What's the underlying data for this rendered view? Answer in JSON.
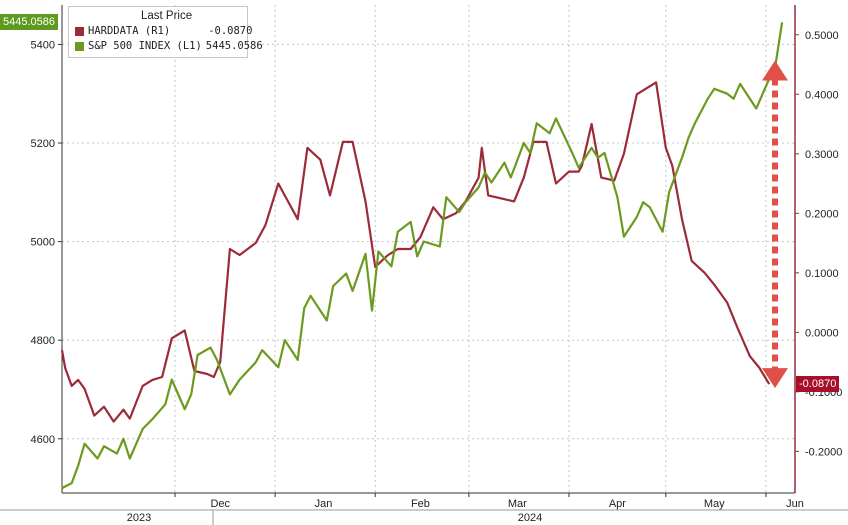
{
  "chart_data": {
    "type": "line",
    "legend": {
      "title": "Last Price",
      "entries": [
        {
          "name": "HARDDATA (R1)",
          "value": "-0.0870",
          "color": "#9c2b3a"
        },
        {
          "name": "S&P 500 INDEX (L1)",
          "value": "5445.0586",
          "color": "#6b9a1f"
        }
      ]
    },
    "left_axis": {
      "ticks": [
        "5400",
        "5200",
        "5000",
        "4800",
        "4600"
      ],
      "ylim": [
        4490,
        5480
      ]
    },
    "right_axis": {
      "ticks": [
        "0.5000",
        "0.4000",
        "0.3000",
        "0.2000",
        "0.1000",
        "0.0000",
        "-0.1000",
        "-0.2000"
      ],
      "ylim": [
        -0.27,
        0.55
      ]
    },
    "x_labels": [
      "Dec",
      "Jan",
      "Feb",
      "Mar",
      "Apr",
      "May",
      "Jun"
    ],
    "years": [
      "2023",
      "2024"
    ],
    "last_value_badges": {
      "left": "5445.0586",
      "right": "-0.0870"
    },
    "grid": true,
    "series": [
      {
        "name": "S&P 500 INDEX",
        "color": "#6b9a1f",
        "axis": "left",
        "x": [
          "2023-10-27",
          "2023-10-30",
          "2023-11-01",
          "2023-11-03",
          "2023-11-07",
          "2023-11-09",
          "2023-11-13",
          "2023-11-15",
          "2023-11-17",
          "2023-11-21",
          "2023-11-24",
          "2023-11-28",
          "2023-11-30",
          "2023-12-04",
          "2023-12-06",
          "2023-12-08",
          "2023-12-12",
          "2023-12-14",
          "2023-12-18",
          "2023-12-21",
          "2023-12-26",
          "2023-12-28",
          "2024-01-02",
          "2024-01-04",
          "2024-01-08",
          "2024-01-10",
          "2024-01-12",
          "2024-01-17",
          "2024-01-19",
          "2024-01-23",
          "2024-01-25",
          "2024-01-29",
          "2024-01-31",
          "2024-02-02",
          "2024-02-06",
          "2024-02-08",
          "2024-02-12",
          "2024-02-14",
          "2024-02-16",
          "2024-02-21",
          "2024-02-23",
          "2024-02-27",
          "2024-02-29",
          "2024-03-04",
          "2024-03-06",
          "2024-03-08",
          "2024-03-12",
          "2024-03-14",
          "2024-03-18",
          "2024-03-20",
          "2024-03-22",
          "2024-03-26",
          "2024-03-28",
          "2024-04-02",
          "2024-04-04",
          "2024-04-08",
          "2024-04-10",
          "2024-04-12",
          "2024-04-16",
          "2024-04-18",
          "2024-04-22",
          "2024-04-24",
          "2024-04-26",
          "2024-04-30",
          "2024-05-02",
          "2024-05-06",
          "2024-05-08",
          "2024-05-10",
          "2024-05-14",
          "2024-05-16",
          "2024-05-20",
          "2024-05-22",
          "2024-05-24",
          "2024-05-29",
          "2024-05-31",
          "2024-06-04",
          "2024-06-06"
        ],
        "values": [
          4500,
          4510,
          4545,
          4590,
          4560,
          4585,
          4570,
          4600,
          4560,
          4620,
          4640,
          4670,
          4720,
          4660,
          4690,
          4770,
          4785,
          4760,
          4690,
          4720,
          4755,
          4780,
          4745,
          4800,
          4760,
          4865,
          4890,
          4840,
          4910,
          4935,
          4900,
          4975,
          4860,
          4980,
          4950,
          5020,
          5040,
          4970,
          5000,
          4990,
          5090,
          5060,
          5080,
          5110,
          5140,
          5120,
          5160,
          5130,
          5200,
          5180,
          5240,
          5220,
          5250,
          5180,
          5150,
          5190,
          5170,
          5180,
          5090,
          5010,
          5050,
          5080,
          5070,
          5020,
          5100,
          5170,
          5210,
          5240,
          5290,
          5310,
          5300,
          5290,
          5320,
          5270,
          5300,
          5360,
          5445
        ]
      },
      {
        "name": "HARDDATA",
        "color": "#9c2b3a",
        "axis": "right",
        "x": [
          "2023-10-27",
          "2023-10-28",
          "2023-10-30",
          "2023-11-01",
          "2023-11-03",
          "2023-11-06",
          "2023-11-09",
          "2023-11-12",
          "2023-11-15",
          "2023-11-17",
          "2023-11-21",
          "2023-11-24",
          "2023-11-27",
          "2023-11-30",
          "2023-12-04",
          "2023-12-07",
          "2023-12-11",
          "2023-12-13",
          "2023-12-15",
          "2023-12-18",
          "2023-12-21",
          "2023-12-26",
          "2023-12-29",
          "2024-01-02",
          "2024-01-05",
          "2024-01-08",
          "2024-01-11",
          "2024-01-15",
          "2024-01-18",
          "2024-01-22",
          "2024-01-25",
          "2024-01-29",
          "2024-02-01",
          "2024-02-05",
          "2024-02-08",
          "2024-02-12",
          "2024-02-15",
          "2024-02-19",
          "2024-02-22",
          "2024-02-26",
          "2024-02-29",
          "2024-03-04",
          "2024-03-05",
          "2024-03-07",
          "2024-03-11",
          "2024-03-15",
          "2024-03-18",
          "2024-03-21",
          "2024-03-25",
          "2024-03-28",
          "2024-04-01",
          "2024-04-04",
          "2024-04-05",
          "2024-04-08",
          "2024-04-11",
          "2024-04-15",
          "2024-04-18",
          "2024-04-22",
          "2024-04-25",
          "2024-04-28",
          "2024-05-01",
          "2024-05-03",
          "2024-05-06",
          "2024-05-09",
          "2024-05-13",
          "2024-05-16",
          "2024-05-20",
          "2024-05-23",
          "2024-05-27",
          "2024-05-30",
          "2024-06-02"
        ],
        "values": [
          -0.03,
          -0.06,
          -0.09,
          -0.08,
          -0.095,
          -0.14,
          -0.125,
          -0.15,
          -0.13,
          -0.145,
          -0.09,
          -0.08,
          -0.075,
          -0.01,
          0.003,
          -0.065,
          -0.07,
          -0.075,
          -0.05,
          0.14,
          0.13,
          0.15,
          0.18,
          0.25,
          0.22,
          0.19,
          0.31,
          0.29,
          0.23,
          0.32,
          0.32,
          0.22,
          0.11,
          0.13,
          0.14,
          0.14,
          0.16,
          0.21,
          0.19,
          0.2,
          0.22,
          0.26,
          0.31,
          0.23,
          0.225,
          0.22,
          0.26,
          0.32,
          0.32,
          0.25,
          0.27,
          0.27,
          0.28,
          0.35,
          0.26,
          0.255,
          0.3,
          0.4,
          0.41,
          0.42,
          0.31,
          0.28,
          0.19,
          0.12,
          0.1,
          0.08,
          0.05,
          0.01,
          -0.04,
          -0.06,
          -0.087
        ]
      }
    ],
    "annotation": "red dashed double-headed arrow between 0.4500 and -0.0870 on right axis"
  }
}
